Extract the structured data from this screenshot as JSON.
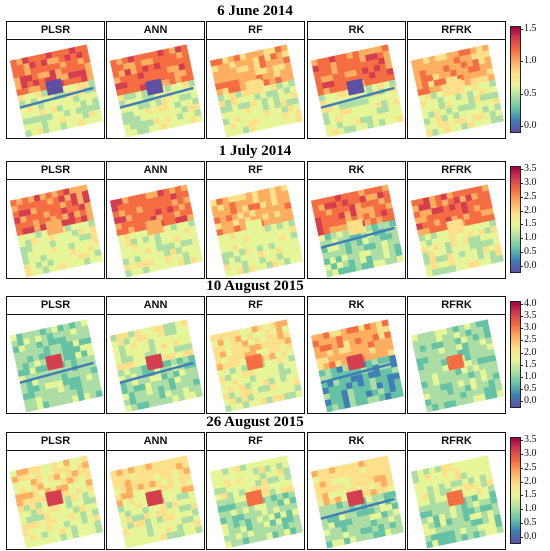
{
  "figure": {
    "methods": [
      "PLSR",
      "ANN",
      "RF",
      "RK",
      "RFRK"
    ],
    "panels": [
      {
        "date": "6 June 2014",
        "colorbar_ticks": [
          "1.5",
          "1.0",
          "0.5",
          "0.0"
        ]
      },
      {
        "date": "1 July 2014",
        "colorbar_ticks": [
          "3.5",
          "3.0",
          "2.5",
          "2.0",
          "1.5",
          "1.0",
          "0.5",
          "0.0"
        ]
      },
      {
        "date": "10 August 2015",
        "colorbar_ticks": [
          "4.0",
          "3.5",
          "3.0",
          "2.5",
          "2.0",
          "1.5",
          "1.0",
          "0.5",
          "0.0"
        ]
      },
      {
        "date": "26 August 2015",
        "colorbar_ticks": [
          "3.5",
          "3.0",
          "2.5",
          "2.0",
          "1.5",
          "1.0",
          "0.5",
          "0.0"
        ]
      }
    ]
  },
  "colors": {
    "spectral_scale": [
      "#5e4fa2",
      "#3f7fb6",
      "#66c2a5",
      "#abdda4",
      "#e6f598",
      "#fee08b",
      "#fdae61",
      "#f46d43",
      "#d53e4f",
      "#9e0142"
    ],
    "frame": "#111111"
  }
}
